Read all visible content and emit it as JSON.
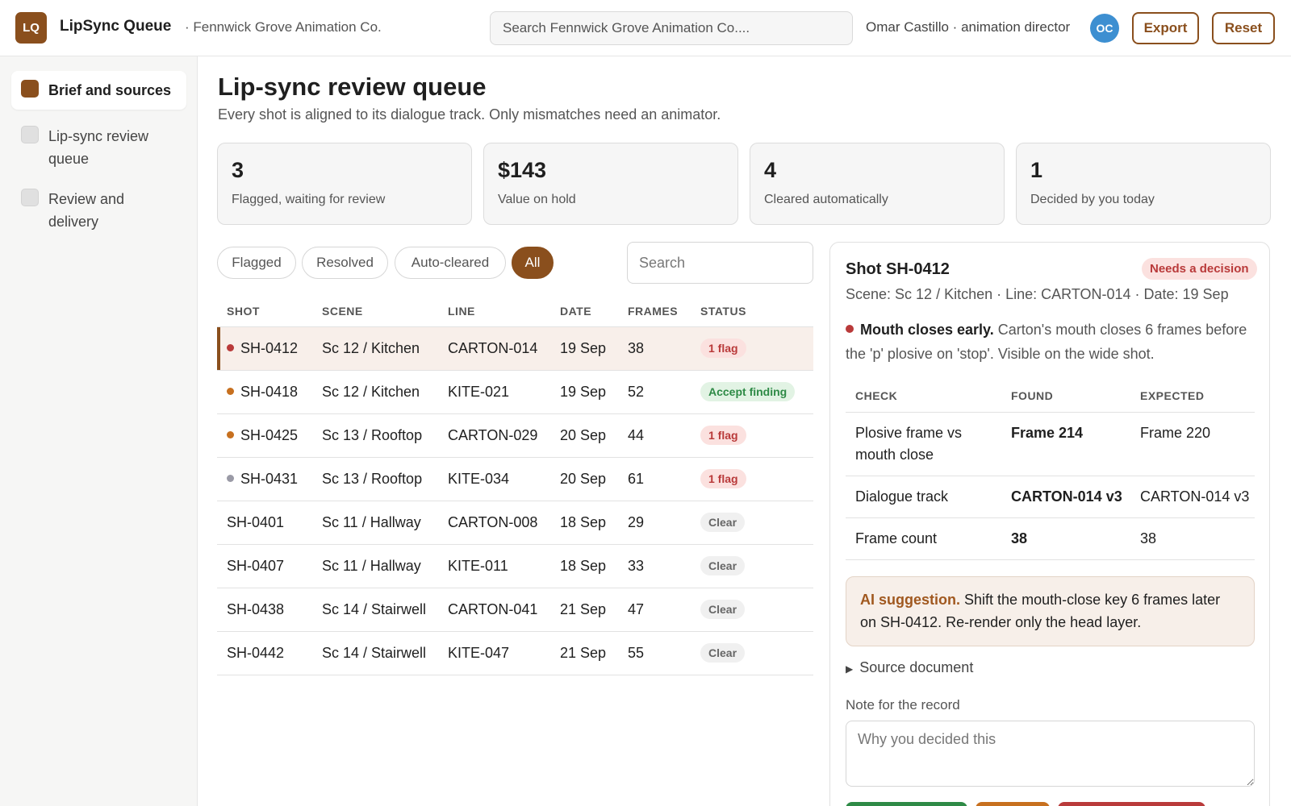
{
  "header": {
    "logo_text": "LQ",
    "app_title": "LipSync Queue",
    "org": "· Fennwick Grove Animation Co.",
    "search_placeholder": "Search Fennwick Grove Animation Co....",
    "user": "Omar Castillo · animation director",
    "avatar_initials": "OC",
    "export_label": "Export",
    "reset_label": "Reset"
  },
  "sidebar": {
    "items": [
      {
        "label": "Brief and sources",
        "active": true
      },
      {
        "label": "Lip-sync review queue",
        "active": false
      },
      {
        "label": "Review and delivery",
        "active": false
      }
    ]
  },
  "main": {
    "title": "Lip-sync review queue",
    "subtitle": "Every shot is aligned to its dialogue track. Only mismatches need an animator.",
    "stats": [
      {
        "value": "3",
        "label": "Flagged, waiting for review"
      },
      {
        "value": "$143",
        "label": "Value on hold"
      },
      {
        "value": "4",
        "label": "Cleared automatically"
      },
      {
        "value": "1",
        "label": "Decided by you today"
      }
    ],
    "filters": [
      {
        "label": "Flagged",
        "active": false
      },
      {
        "label": "Resolved",
        "active": false
      },
      {
        "label": "Auto-cleared",
        "active": false
      },
      {
        "label": "All",
        "active": true
      }
    ],
    "table_search_placeholder": "Search",
    "columns": [
      "SHOT",
      "SCENE",
      "LINE",
      "DATE",
      "FRAMES",
      "STATUS"
    ],
    "rows": [
      {
        "shot": "SH-0412",
        "scene": "Sc 12 / Kitchen",
        "line": "CARTON-014",
        "date": "19 Sep",
        "frames": "38",
        "status": "1 flag",
        "status_kind": "flag",
        "dot": "#b93a3a",
        "selected": true
      },
      {
        "shot": "SH-0418",
        "scene": "Sc 12 / Kitchen",
        "line": "KITE-021",
        "date": "19 Sep",
        "frames": "52",
        "status": "Accept finding",
        "status_kind": "accept",
        "dot": "#c7701f",
        "selected": false
      },
      {
        "shot": "SH-0425",
        "scene": "Sc 13 / Rooftop",
        "line": "CARTON-029",
        "date": "20 Sep",
        "frames": "44",
        "status": "1 flag",
        "status_kind": "flag",
        "dot": "#c7701f",
        "selected": false
      },
      {
        "shot": "SH-0431",
        "scene": "Sc 13 / Rooftop",
        "line": "KITE-034",
        "date": "20 Sep",
        "frames": "61",
        "status": "1 flag",
        "status_kind": "flag",
        "dot": "#9a9aa6",
        "selected": false
      },
      {
        "shot": "SH-0401",
        "scene": "Sc 11 / Hallway",
        "line": "CARTON-008",
        "date": "18 Sep",
        "frames": "29",
        "status": "Clear",
        "status_kind": "clear",
        "dot": null,
        "selected": false
      },
      {
        "shot": "SH-0407",
        "scene": "Sc 11 / Hallway",
        "line": "KITE-011",
        "date": "18 Sep",
        "frames": "33",
        "status": "Clear",
        "status_kind": "clear",
        "dot": null,
        "selected": false
      },
      {
        "shot": "SH-0438",
        "scene": "Sc 14 / Stairwell",
        "line": "CARTON-041",
        "date": "21 Sep",
        "frames": "47",
        "status": "Clear",
        "status_kind": "clear",
        "dot": null,
        "selected": false
      },
      {
        "shot": "SH-0442",
        "scene": "Sc 14 / Stairwell",
        "line": "KITE-047",
        "date": "21 Sep",
        "frames": "55",
        "status": "Clear",
        "status_kind": "clear",
        "dot": null,
        "selected": false
      }
    ]
  },
  "detail": {
    "title": "Shot SH-0412",
    "badge": "Needs a decision",
    "meta": "Scene: Sc 12 / Kitchen · Line: CARTON-014 · Date: 19 Sep",
    "finding_title": "Mouth closes early.",
    "finding_text": "Carton's mouth closes 6 frames before the 'p' plosive on 'stop'. Visible on the wide shot.",
    "check_columns": [
      "CHECK",
      "FOUND",
      "EXPECTED"
    ],
    "checks": [
      {
        "check": "Plosive frame vs mouth close",
        "found": "Frame 214",
        "found_ok": false,
        "expected": "Frame 220"
      },
      {
        "check": "Dialogue track",
        "found": "CARTON-014 v3",
        "found_ok": true,
        "expected": "CARTON-014 v3"
      },
      {
        "check": "Frame count",
        "found": "38",
        "found_ok": true,
        "expected": "38"
      }
    ],
    "ai_label": "AI suggestion.",
    "ai_text": "Shift the mouth-close key 6 frames later on SH-0412. Re-render only the head layer.",
    "source_doc": "Source document",
    "note_label": "Note for the record",
    "note_placeholder": "Why you decided this"
  },
  "colors": {
    "accent": "#8a4f1d",
    "flag": "#b93a3a",
    "ok": "#2e8a46",
    "action_green": "#2e8a46",
    "action_amber": "#c7701f",
    "action_red": "#b93a3a"
  }
}
